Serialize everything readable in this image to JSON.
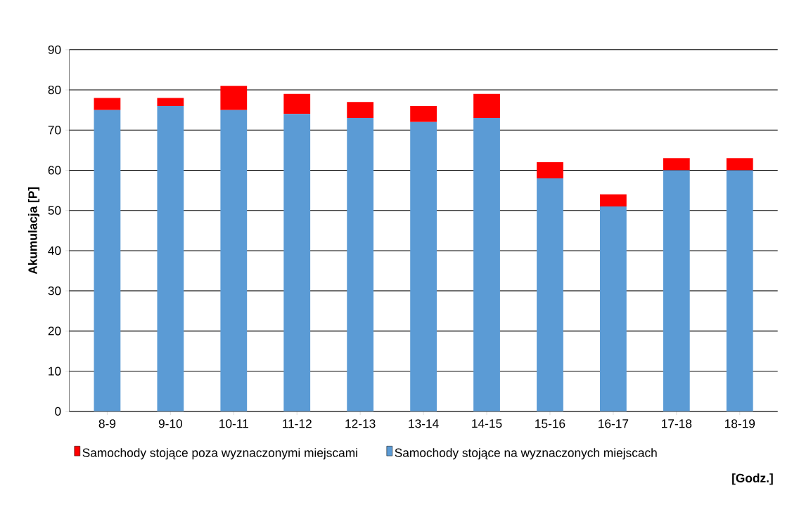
{
  "chart_data": {
    "type": "bar",
    "stacked": true,
    "ylabel": "Akumulacja [P]",
    "xlabel": "[Godz.]",
    "categories": [
      "8-9",
      "9-10",
      "10-11",
      "11-12",
      "12-13",
      "13-14",
      "14-15",
      "15-16",
      "16-17",
      "17-18",
      "18-19"
    ],
    "series": [
      {
        "name": "Samochody stojące na wyznaczonych miejscach",
        "color": "#5b9bd5",
        "values": [
          75,
          76,
          75,
          74,
          73,
          72,
          73,
          58,
          51,
          60,
          60
        ]
      },
      {
        "name": "Samochody stojące poza wyznaczonymi miejscami",
        "color": "#ff0000",
        "values": [
          3,
          2,
          6,
          5,
          4,
          4,
          6,
          4,
          3,
          3,
          3
        ]
      }
    ],
    "ylim": [
      0,
      90
    ],
    "yticks": [
      0,
      10,
      20,
      30,
      40,
      50,
      60,
      70,
      80,
      90
    ],
    "grid": "y",
    "legend": "bottom"
  }
}
